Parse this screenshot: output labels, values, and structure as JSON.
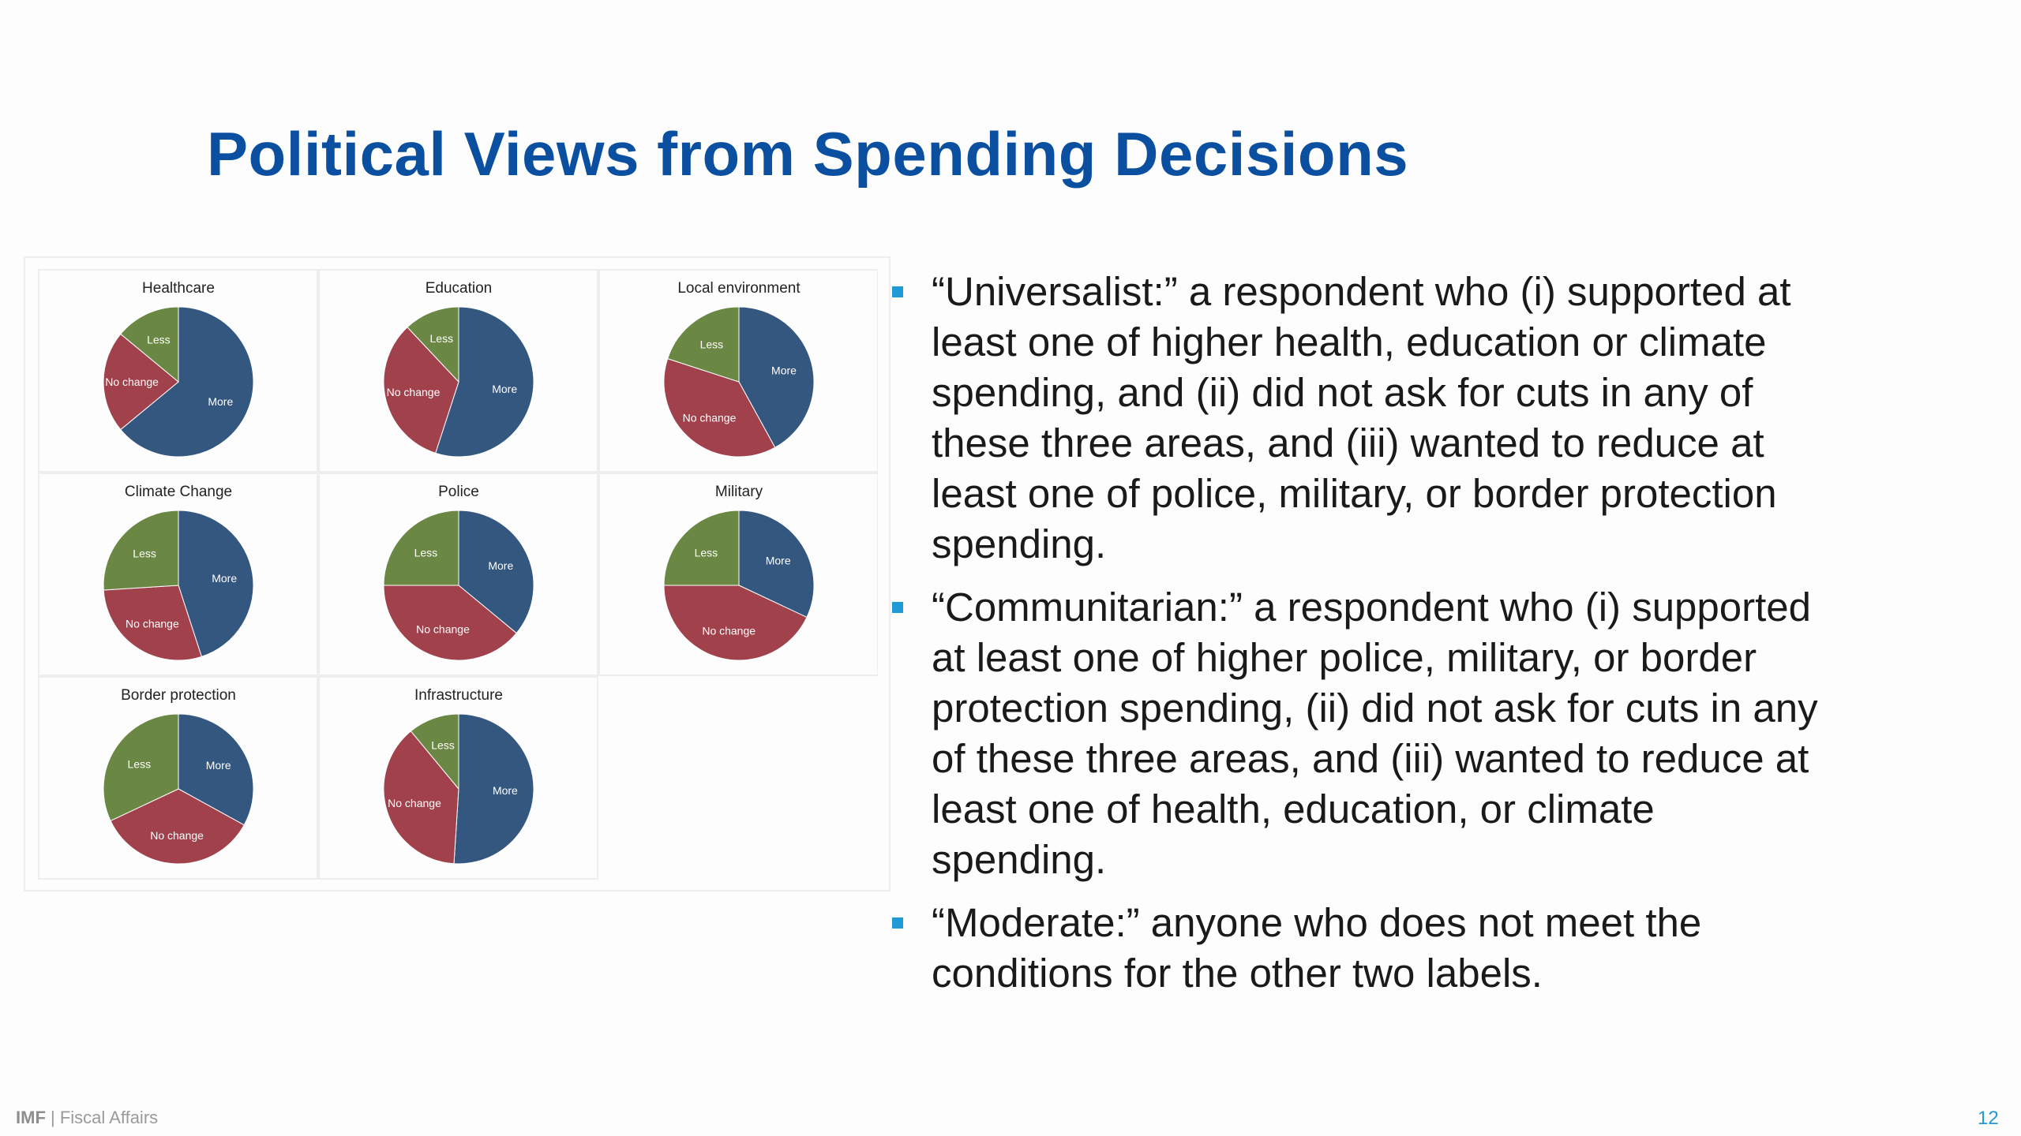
{
  "title": "Political Views from Spending Decisions",
  "colors": {
    "more": "#34577f",
    "no_change": "#a0414c",
    "less": "#6a8744",
    "title": "#0b4fa0",
    "bullet": "#1f9ad6"
  },
  "chart_data": [
    {
      "type": "pie",
      "title": "Healthcare",
      "slices": [
        {
          "label": "More",
          "value": 64
        },
        {
          "label": "No change",
          "value": 22
        },
        {
          "label": "Less",
          "value": 14
        }
      ]
    },
    {
      "type": "pie",
      "title": "Education",
      "slices": [
        {
          "label": "More",
          "value": 55
        },
        {
          "label": "No change",
          "value": 33
        },
        {
          "label": "Less",
          "value": 12
        }
      ]
    },
    {
      "type": "pie",
      "title": "Local environment",
      "slices": [
        {
          "label": "More",
          "value": 42
        },
        {
          "label": "No change",
          "value": 38
        },
        {
          "label": "Less",
          "value": 20
        }
      ]
    },
    {
      "type": "pie",
      "title": "Climate Change",
      "slices": [
        {
          "label": "More",
          "value": 45
        },
        {
          "label": "No change",
          "value": 29
        },
        {
          "label": "Less",
          "value": 26
        }
      ]
    },
    {
      "type": "pie",
      "title": "Police",
      "slices": [
        {
          "label": "More",
          "value": 36
        },
        {
          "label": "No change",
          "value": 39
        },
        {
          "label": "Less",
          "value": 25
        }
      ]
    },
    {
      "type": "pie",
      "title": "Military",
      "slices": [
        {
          "label": "More",
          "value": 32
        },
        {
          "label": "No change",
          "value": 43
        },
        {
          "label": "Less",
          "value": 25
        }
      ]
    },
    {
      "type": "pie",
      "title": "Border protection",
      "slices": [
        {
          "label": "More",
          "value": 33
        },
        {
          "label": "No change",
          "value": 35
        },
        {
          "label": "Less",
          "value": 32
        }
      ]
    },
    {
      "type": "pie",
      "title": "Infrastructure",
      "slices": [
        {
          "label": "More",
          "value": 51
        },
        {
          "label": "No change",
          "value": 38
        },
        {
          "label": "Less",
          "value": 11
        }
      ]
    }
  ],
  "bullets": [
    "“Universalist:” a respondent who (i) supported at least one of higher health, education or climate spending, and (ii) did not ask for cuts in any of these three areas, and (iii) wanted to reduce at least one of police, military, or border protection spending.",
    "“Communitarian:” a respondent who (i) supported at least one of higher police, military, or border protection spending, (ii) did not ask for cuts in any of these three areas, and (iii) wanted to reduce at least one of health, education, or climate spending.",
    "“Moderate:” anyone who does not meet the conditions for the other two labels."
  ],
  "footer": {
    "brand": "IMF",
    "separator": " | ",
    "department": "Fiscal Affairs",
    "page_number": "12"
  }
}
